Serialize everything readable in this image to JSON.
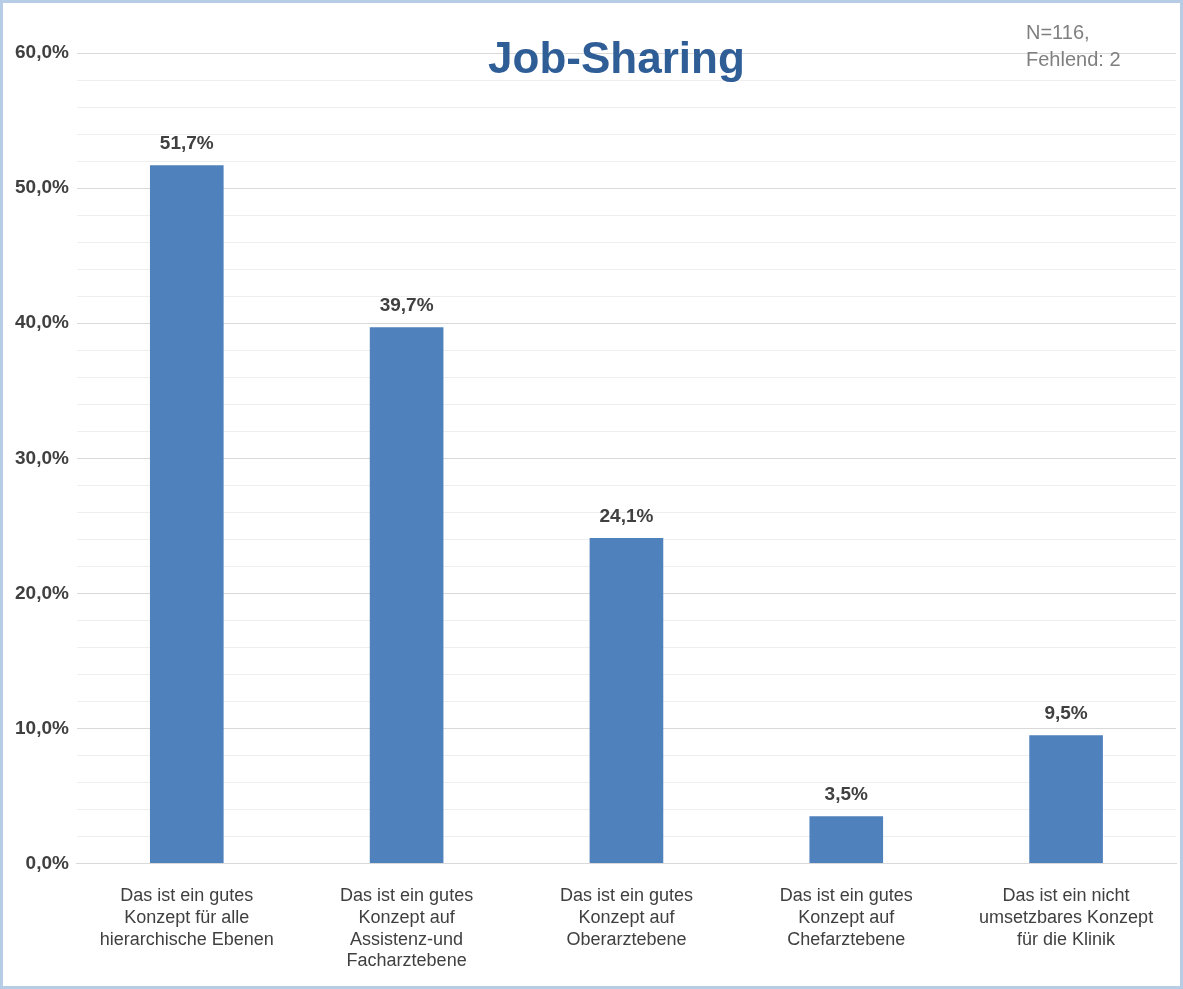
{
  "chart_data": {
    "type": "bar",
    "title": "Job-Sharing",
    "categories": [
      "Das ist ein gutes Konzept für alle hierarchische Ebenen",
      "Das ist ein gutes Konzept auf Assistenz-und Facharztebene",
      "Das ist ein gutes Konzept auf Oberarztebene",
      "Das ist ein gutes Konzept auf Chefarztebene",
      "Das ist ein nicht umsetzbares Konzept für die Klinik"
    ],
    "values": [
      51.7,
      39.7,
      24.1,
      3.5,
      9.5
    ],
    "value_labels": [
      "51,7%",
      "39,7%",
      "24,1%",
      "3,5%",
      "9,5%"
    ],
    "color": "#4f81bd",
    "ylim": [
      0,
      60
    ],
    "yticks": [
      {
        "value": 0,
        "label": "0,0%"
      },
      {
        "value": 2,
        "label": null
      },
      {
        "value": 4,
        "label": null
      },
      {
        "value": 6,
        "label": null
      },
      {
        "value": 8,
        "label": null
      },
      {
        "value": 10,
        "label": "10,0%"
      },
      {
        "value": 12,
        "label": null
      },
      {
        "value": 14,
        "label": null
      },
      {
        "value": 16,
        "label": null
      },
      {
        "value": 18,
        "label": null
      },
      {
        "value": 20,
        "label": "20,0%"
      },
      {
        "value": 22,
        "label": null
      },
      {
        "value": 24,
        "label": null
      },
      {
        "value": 26,
        "label": null
      },
      {
        "value": 28,
        "label": null
      },
      {
        "value": 30,
        "label": "30,0%"
      },
      {
        "value": 32,
        "label": null
      },
      {
        "value": 34,
        "label": null
      },
      {
        "value": 36,
        "label": null
      },
      {
        "value": 38,
        "label": null
      },
      {
        "value": 40,
        "label": "40,0%"
      },
      {
        "value": 42,
        "label": null
      },
      {
        "value": 44,
        "label": null
      },
      {
        "value": 46,
        "label": null
      },
      {
        "value": 48,
        "label": null
      },
      {
        "value": 50,
        "label": "50,0%"
      },
      {
        "value": 52,
        "label": null
      },
      {
        "value": 54,
        "label": null
      },
      {
        "value": 56,
        "label": null
      },
      {
        "value": 58,
        "label": null
      },
      {
        "value": 60,
        "label": "60,0%"
      }
    ],
    "grid": true,
    "annotations": [
      "N=116,\nFehlend: 2"
    ]
  }
}
